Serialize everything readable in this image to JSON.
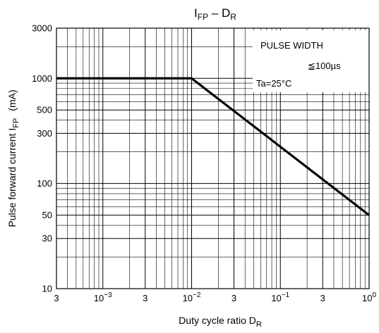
{
  "chart_data": {
    "type": "line",
    "title_main": "I",
    "title_main_sub": "FP",
    "title_sep": " – D",
    "title_sep_sub": "R",
    "xlabel": "Duty cycle ratio   D",
    "xlabel_sub": "R",
    "ylabel": "Pulse forward current   I",
    "ylabel_sub": "FP",
    "ylabel_unit": "(mA)",
    "xscale": "log",
    "yscale": "log",
    "xlim": [
      0.0003,
      1
    ],
    "ylim": [
      10,
      3000
    ],
    "grid": true,
    "x_ticks": [
      {
        "base": "3",
        "exp": ""
      },
      {
        "base": "10",
        "exp": "−3"
      },
      {
        "base": "3",
        "exp": ""
      },
      {
        "base": "10",
        "exp": "−2"
      },
      {
        "base": "3",
        "exp": ""
      },
      {
        "base": "10",
        "exp": "−1"
      },
      {
        "base": "3",
        "exp": ""
      },
      {
        "base": "10",
        "exp": "0"
      }
    ],
    "y_ticks": [
      "3000",
      "1000",
      "500",
      "300",
      "100",
      "50",
      "30",
      "10"
    ],
    "series": [
      {
        "x": [
          0.0003,
          0.01,
          1
        ],
        "y": [
          1000,
          1000,
          50
        ]
      }
    ],
    "annotation": {
      "line1": "PULSE WIDTH",
      "line2": "≦100µs",
      "line3": "Ta=25°C"
    }
  }
}
